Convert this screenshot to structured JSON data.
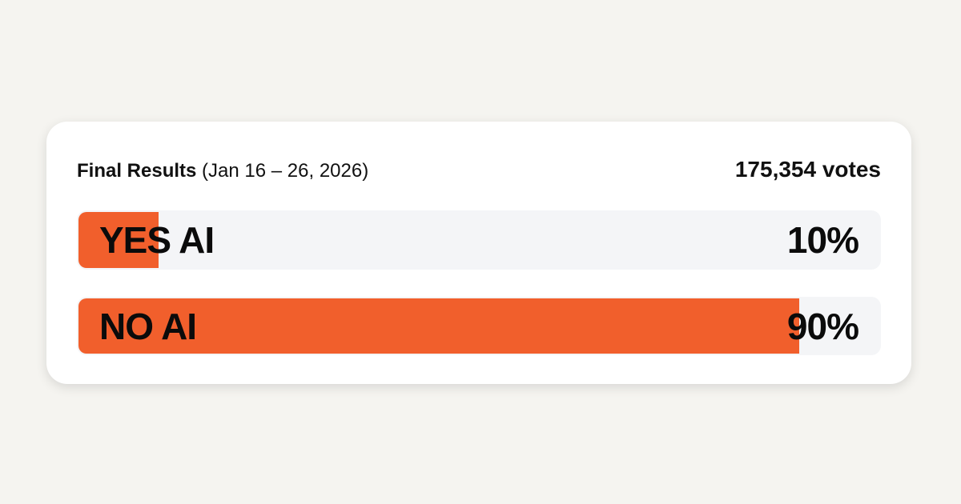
{
  "header": {
    "title_bold": "Final Results",
    "title_dates": "(Jan 16 – 26, 2026)",
    "votes": "175,354 votes"
  },
  "options": [
    {
      "label": "YES AI",
      "percent_label": "10%",
      "percent": 10
    },
    {
      "label": "NO AI",
      "percent_label": "90%",
      "percent": 90
    }
  ],
  "colors": {
    "fill": "#f15f2c",
    "track": "#f4f5f7",
    "background": "#f5f4f0"
  }
}
